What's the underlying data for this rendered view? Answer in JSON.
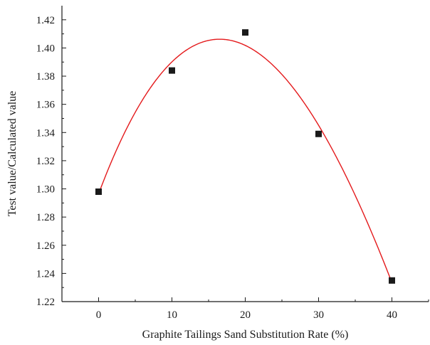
{
  "chart_data": {
    "type": "scatter",
    "title": "",
    "xlabel": "Graphite Tailings Sand Substitution Rate (%)",
    "ylabel": "Test value/Calculated value",
    "xlim": [
      -5,
      45
    ],
    "ylim": [
      1.22,
      1.43
    ],
    "x_ticks": [
      0,
      10,
      20,
      30,
      40
    ],
    "x_tick_labels": [
      "0",
      "10",
      "20",
      "30",
      "40"
    ],
    "y_ticks": [
      1.22,
      1.24,
      1.26,
      1.28,
      1.3,
      1.32,
      1.34,
      1.36,
      1.38,
      1.4,
      1.42
    ],
    "y_tick_labels": [
      "1.22",
      "1.24",
      "1.26",
      "1.28",
      "1.30",
      "1.32",
      "1.34",
      "1.36",
      "1.38",
      "1.40",
      "1.42"
    ],
    "series": [
      {
        "x": [
          0,
          10,
          20,
          30,
          40
        ],
        "values": [
          1.298,
          1.384,
          1.411,
          1.339,
          1.235
        ],
        "marker": "square",
        "color": "#1a1a1a"
      }
    ],
    "fit_curve": {
      "type": "polynomial",
      "color": "#e41a1c",
      "x_range": [
        0,
        40
      ]
    },
    "grid": false,
    "legend": "none"
  }
}
